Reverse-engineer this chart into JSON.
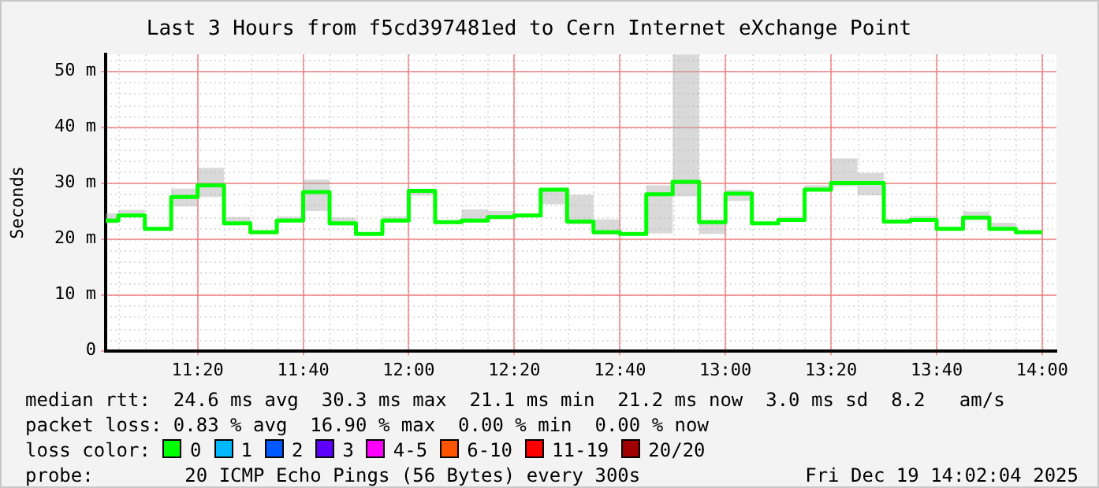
{
  "chart_data": {
    "type": "step",
    "title": "Last 3 Hours from f5cd397481ed to Cern Internet eXchange Point",
    "ylabel": "Seconds",
    "x": [
      11.043,
      11.0833,
      11.1667,
      11.25,
      11.3333,
      11.4167,
      11.5,
      11.5833,
      11.6667,
      11.75,
      11.8333,
      11.9167,
      12,
      12.0833,
      12.1667,
      12.25,
      12.3333,
      12.4167,
      12.5,
      12.5833,
      12.6667,
      12.75,
      12.8333,
      12.9167,
      13,
      13.0833,
      13.1667,
      13.25,
      13.3333,
      13.4167,
      13.5,
      13.5833,
      13.6667,
      13.75,
      13.8333,
      13.9167,
      14
    ],
    "series": [
      {
        "color": "#00ff00",
        "values": [
          23.3,
          23.3,
          24.2,
          21.8,
          27.5,
          29.6,
          22.8,
          21.2,
          23.3,
          28.4,
          22.8,
          20.9,
          23.3,
          28.6,
          23.0,
          23.3,
          23.9,
          24.2,
          28.8,
          23.1,
          21.2,
          20.9,
          28.0,
          30.2,
          23.0,
          28.1,
          22.8,
          23.4,
          28.8,
          30.0,
          30.0,
          23.1,
          23.4,
          21.8,
          23.8,
          21.8,
          21.2
        ],
        "lower": [
          22.8,
          22.8,
          24.0,
          21.6,
          25.8,
          27.5,
          22.5,
          21.0,
          23.2,
          25.0,
          22.4,
          20.8,
          23.2,
          27.8,
          22.8,
          23.2,
          23.6,
          24.0,
          26.2,
          22.6,
          20.8,
          20.8,
          21.0,
          27.6,
          20.9,
          26.8,
          22.6,
          23.2,
          28.5,
          29.4,
          27.8,
          22.8,
          23.2,
          21.6,
          23.4,
          21.6,
          21.1
        ],
        "upper": [
          24.6,
          24.6,
          25.2,
          22.2,
          29.0,
          32.7,
          23.9,
          21.5,
          24.0,
          30.6,
          23.8,
          21.2,
          24.0,
          29.0,
          23.3,
          25.3,
          25.0,
          24.4,
          29.0,
          27.9,
          23.5,
          21.1,
          29.6,
          53,
          23.3,
          28.8,
          23.0,
          24.0,
          29.6,
          34.4,
          31.8,
          23.3,
          24.1,
          22.2,
          24.9,
          22.9,
          21.4
        ]
      }
    ],
    "xlim": [
      11.043,
      14.045
    ],
    "xticks": [
      {
        "value": 11.3333,
        "label": "11:20"
      },
      {
        "value": 11.6667,
        "label": "11:40"
      },
      {
        "value": 12,
        "label": "12:00"
      },
      {
        "value": 12.3333,
        "label": "12:20"
      },
      {
        "value": 12.6667,
        "label": "12:40"
      },
      {
        "value": 13,
        "label": "13:00"
      },
      {
        "value": 13.3333,
        "label": "13:20"
      },
      {
        "value": 13.6667,
        "label": "13:40"
      },
      {
        "value": 14,
        "label": "14:00"
      }
    ],
    "ylim": [
      0,
      53
    ],
    "yticks": [
      0,
      {
        "value": 10,
        "label": "10 m"
      },
      {
        "value": 20,
        "label": "20 m"
      },
      {
        "value": 30,
        "label": "30 m"
      },
      {
        "value": 40,
        "label": "40 m"
      },
      {
        "value": 50,
        "label": "50 m"
      }
    ],
    "grid": true,
    "legend": false,
    "annotations": [
      "median rtt:  24.6 ms avg  30.3 ms max  21.1 ms min  21.2 ms now  3.0 ms sd  8.2   am/s",
      "packet loss: 0.83 % avg  16.90 % max  0.00 % min  0.00 % now",
      "loss color:",
      "0",
      "1",
      "2",
      "3",
      "4-5",
      "6-10",
      "11-19",
      "20/20",
      "probe:        20 ICMP Echo Pings (56 Bytes) every 300s",
      "Fri Dec 19 14:02:04 2025"
    ]
  }
}
